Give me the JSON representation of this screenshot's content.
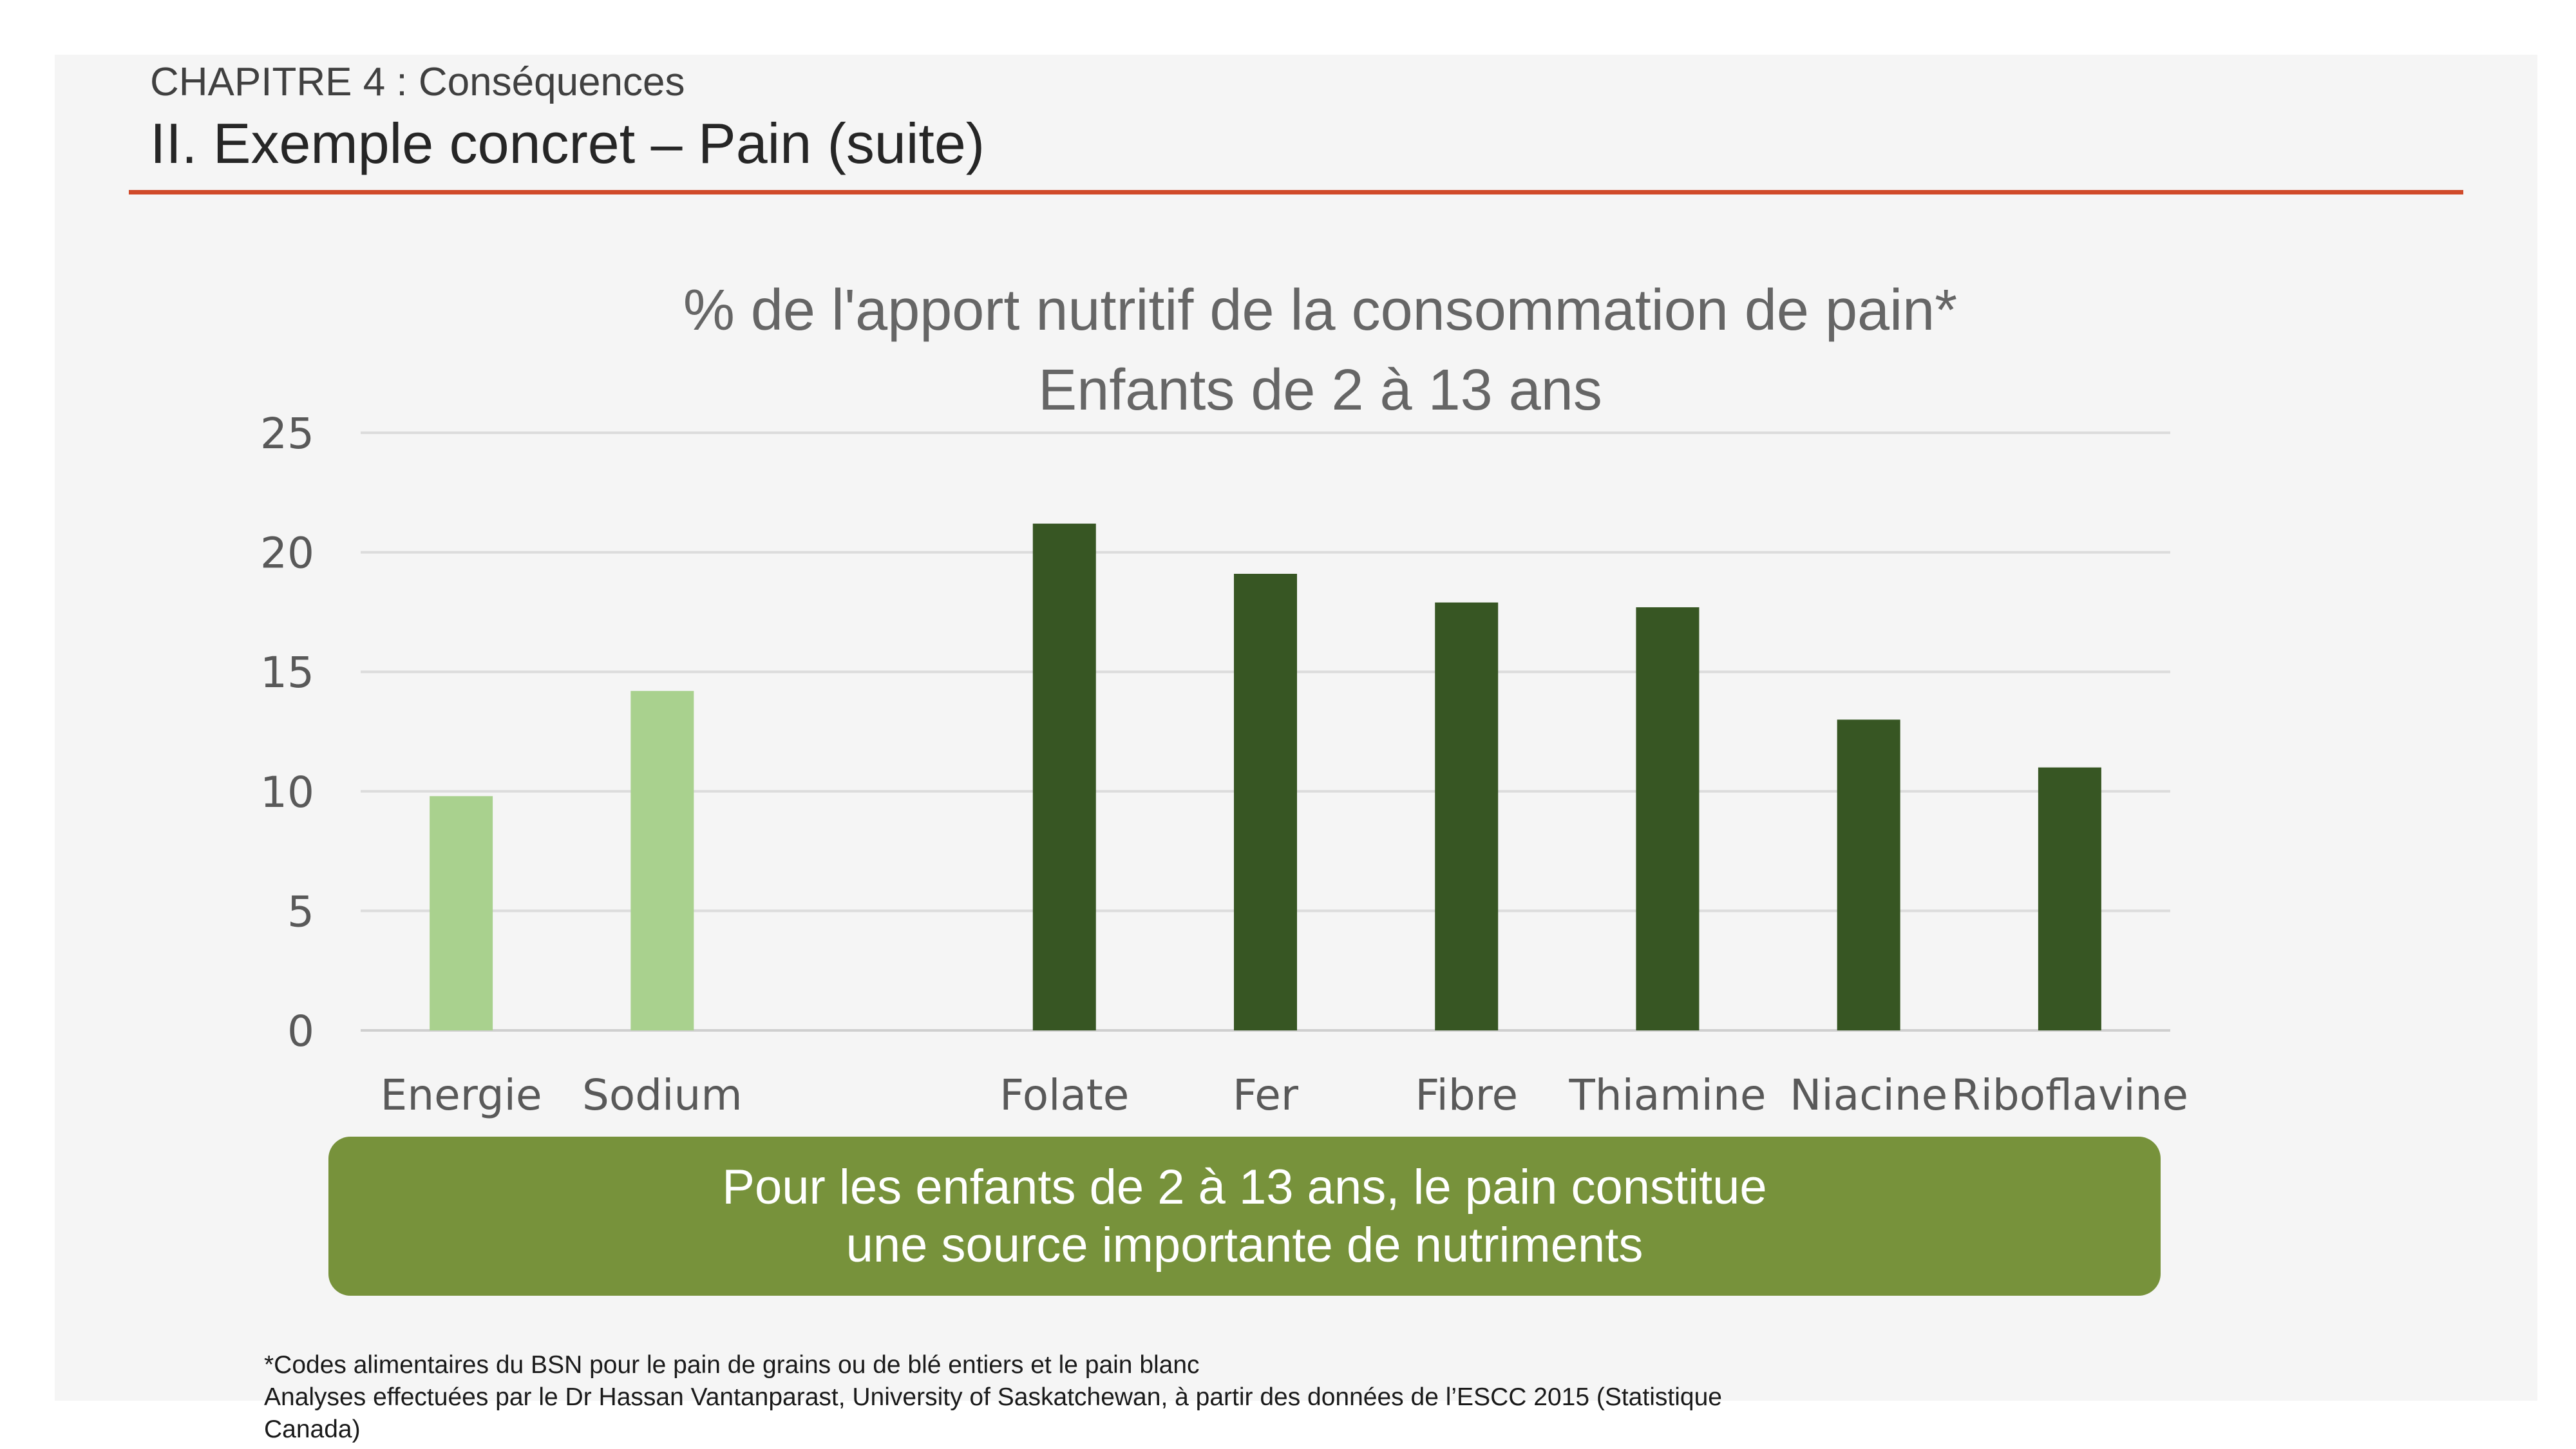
{
  "slide": {
    "chapter": "CHAPITRE 4 : Conséquences",
    "title": "II. Exemple concret – Pain (suite)"
  },
  "chart_data": {
    "type": "bar",
    "title": "%  de l'apport nutritif de la consommation de pain*",
    "subtitle": "Enfants de 2 à 13 ans",
    "categories": [
      "Energie",
      "Sodium",
      "",
      "Folate",
      "Fer",
      "Fibre",
      "Thiamine",
      "Niacine",
      "Riboflavine"
    ],
    "values": [
      9.8,
      14.2,
      null,
      21.2,
      19.1,
      17.9,
      17.7,
      13.0,
      11.0
    ],
    "bar_colors": [
      "#a9d18e",
      "#a9d18e",
      null,
      "#375623",
      "#375623",
      "#375623",
      "#375623",
      "#375623",
      "#375623"
    ],
    "ylim": [
      0,
      25
    ],
    "yticks": [
      0,
      5,
      10,
      15,
      20,
      25
    ],
    "xlabel": "",
    "ylabel": "",
    "grid": true,
    "legend": "none"
  },
  "callout": {
    "line1": "Pour les enfants de 2 à 13 ans, le pain constitue",
    "line2": "une source importante de nutriments",
    "color": "#77923b"
  },
  "footnotes": {
    "line1": "*Codes alimentaires du BSN pour le pain de grains ou de blé entiers et le pain blanc",
    "line2": "Analyses effectuées par le Dr Hassan Vantanparast, University of Saskatchewan, à partir des données de l’ESCC 2015 (Statistique",
    "line3": "Canada)"
  },
  "colors": {
    "accent_rule": "#d04a2a",
    "background": "#f5f5f5"
  }
}
